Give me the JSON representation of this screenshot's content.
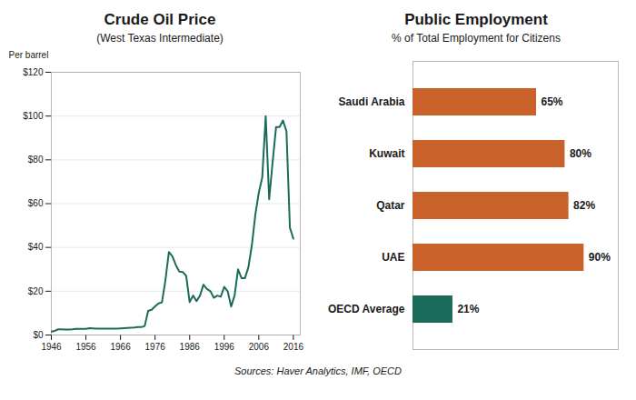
{
  "chart_data": [
    {
      "type": "line",
      "title": "Crude Oil Price",
      "subtitle": "(West Texas Intermediate)",
      "y_label": "Per barrel",
      "x": [
        1946,
        1947,
        1948,
        1949,
        1950,
        1951,
        1952,
        1953,
        1954,
        1955,
        1956,
        1957,
        1958,
        1959,
        1960,
        1961,
        1962,
        1963,
        1964,
        1965,
        1966,
        1967,
        1968,
        1969,
        1970,
        1971,
        1972,
        1973,
        1974,
        1975,
        1976,
        1977,
        1978,
        1979,
        1980,
        1981,
        1982,
        1983,
        1984,
        1985,
        1986,
        1987,
        1988,
        1989,
        1990,
        1991,
        1992,
        1993,
        1994,
        1995,
        1996,
        1997,
        1998,
        1999,
        2000,
        2001,
        2002,
        2003,
        2004,
        2005,
        2006,
        2007,
        2008,
        2009,
        2010,
        2011,
        2012,
        2013,
        2014,
        2015,
        2016
      ],
      "values": [
        1.6,
        1.9,
        2.6,
        2.6,
        2.5,
        2.5,
        2.6,
        2.8,
        2.8,
        2.8,
        2.8,
        3.1,
        3.0,
        2.9,
        2.9,
        2.9,
        2.9,
        2.9,
        2.9,
        2.9,
        3.0,
        3.1,
        3.2,
        3.3,
        3.4,
        3.6,
        3.6,
        4.1,
        11.0,
        11.5,
        13.1,
        14.4,
        14.9,
        25.1,
        37.9,
        36.0,
        32.0,
        29.0,
        28.8,
        27.0,
        15.0,
        18.0,
        15.5,
        18.0,
        23.0,
        21.0,
        20.0,
        17.0,
        18.0,
        17.5,
        22.0,
        20.0,
        13.0,
        18.0,
        30.0,
        26.0,
        26.0,
        31.0,
        41.0,
        55.0,
        65.0,
        72.0,
        100.0,
        62.0,
        79.0,
        95.0,
        95.0,
        98.0,
        93.0,
        49.0,
        44.0
      ],
      "color": "#1a6b5a",
      "xlim": [
        1946,
        2018
      ],
      "xticks": [
        1946,
        1956,
        1966,
        1976,
        1986,
        1996,
        2006,
        2016
      ],
      "ylim": [
        0,
        120
      ],
      "yticks": [
        {
          "value": 0,
          "label": "$0"
        },
        {
          "value": 20,
          "label": "$20"
        },
        {
          "value": 40,
          "label": "$40"
        },
        {
          "value": 60,
          "label": "$60"
        },
        {
          "value": 80,
          "label": "$80"
        },
        {
          "value": 100,
          "label": "$100"
        },
        {
          "value": 120,
          "label": "$120"
        }
      ],
      "grid": true
    },
    {
      "type": "bar",
      "title": "Public Employment",
      "subtitle": "% of Total Employment for Citizens",
      "orientation": "horizontal",
      "categories": [
        "Saudi Arabia",
        "Kuwait",
        "Qatar",
        "UAE",
        "OECD Average"
      ],
      "values": [
        65,
        80,
        82,
        90,
        21
      ],
      "value_labels": [
        "65%",
        "80%",
        "82%",
        "90%",
        "21%"
      ],
      "colors": [
        "#c8622a",
        "#c8622a",
        "#c8622a",
        "#c8622a",
        "#1a6b5a"
      ],
      "xlim": [
        0,
        108
      ],
      "data_labels": true,
      "tick_labels": "y",
      "annotations": [
        "Sources: Haver Analytics, IMF, OECD"
      ]
    }
  ]
}
